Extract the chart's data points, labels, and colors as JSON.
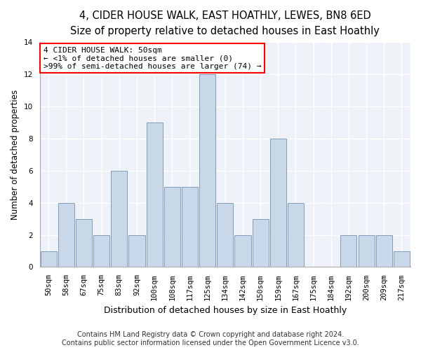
{
  "title": "4, CIDER HOUSE WALK, EAST HOATHLY, LEWES, BN8 6ED",
  "subtitle": "Size of property relative to detached houses in East Hoathly",
  "xlabel": "Distribution of detached houses by size in East Hoathly",
  "ylabel": "Number of detached properties",
  "bin_labels": [
    "50sqm",
    "58sqm",
    "67sqm",
    "75sqm",
    "83sqm",
    "92sqm",
    "100sqm",
    "108sqm",
    "117sqm",
    "125sqm",
    "134sqm",
    "142sqm",
    "150sqm",
    "159sqm",
    "167sqm",
    "175sqm",
    "184sqm",
    "192sqm",
    "200sqm",
    "209sqm",
    "217sqm"
  ],
  "bar_values": [
    1,
    4,
    3,
    2,
    6,
    2,
    9,
    5,
    5,
    12,
    4,
    2,
    3,
    8,
    4,
    0,
    0,
    2,
    2,
    2,
    1
  ],
  "bar_color": "#c8d8e8",
  "bar_edge_color": "#7090b0",
  "background_color": "#eef2f8",
  "grid_color": "#ffffff",
  "ylim": [
    0,
    14
  ],
  "yticks": [
    0,
    2,
    4,
    6,
    8,
    10,
    12,
    14
  ],
  "annotation_text": "4 CIDER HOUSE WALK: 50sqm\n← <1% of detached houses are smaller (0)\n>99% of semi-detached houses are larger (74) →",
  "footer_line1": "Contains HM Land Registry data © Crown copyright and database right 2024.",
  "footer_line2": "Contains public sector information licensed under the Open Government Licence v3.0.",
  "title_fontsize": 10.5,
  "subtitle_fontsize": 9.5,
  "annotation_fontsize": 8,
  "ylabel_fontsize": 8.5,
  "xlabel_fontsize": 9,
  "tick_fontsize": 7.5,
  "footer_fontsize": 7
}
